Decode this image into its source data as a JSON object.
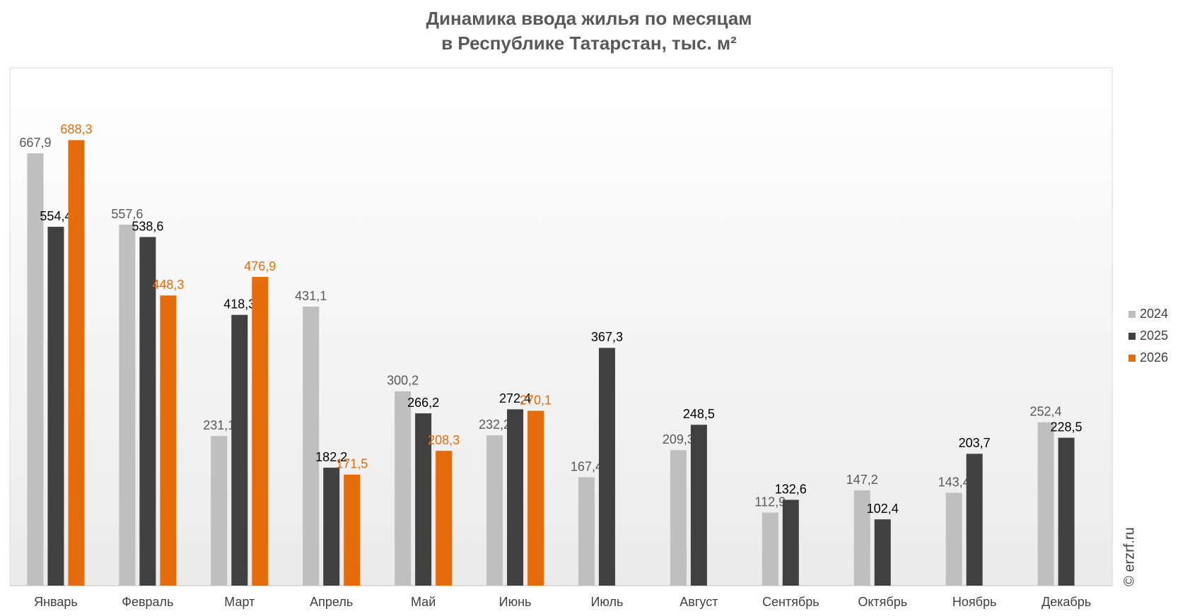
{
  "chart_data": {
    "type": "bar",
    "title": [
      "Динамика ввода жилья по месяцам",
      "в Республике Татарстан, тыс. м²"
    ],
    "categories": [
      "Январь",
      "Февраль",
      "Март",
      "Апрель",
      "Май",
      "Июнь",
      "Июль",
      "Август",
      "Сентябрь",
      "Октябрь",
      "Ноябрь",
      "Декабрь"
    ],
    "series": [
      {
        "name": "2024",
        "color": "#bfbfbf",
        "label_color": "#595959",
        "values": [
          667.9,
          557.6,
          231.1,
          431.1,
          300.2,
          232.2,
          167.4,
          209.3,
          112.9,
          147.2,
          143.4,
          252.4
        ],
        "value_labels": [
          "667,9",
          "557,6",
          "231,1",
          "431,1",
          "300,2",
          "232,2",
          "167,4",
          "209,3",
          "112,9",
          "147,2",
          "143,4",
          "252,4"
        ]
      },
      {
        "name": "2025",
        "color": "#404040",
        "label_color": "#000000",
        "values": [
          554.4,
          538.6,
          418.3,
          182.2,
          266.2,
          272.4,
          367.3,
          248.5,
          132.6,
          102.4,
          203.7,
          228.5
        ],
        "value_labels": [
          "554,4",
          "538,6",
          "418,3",
          "182,2",
          "266,2",
          "272,4",
          "367,3",
          "248,5",
          "132,6",
          "102,4",
          "203,7",
          "228,5"
        ]
      },
      {
        "name": "2026",
        "color": "#e46c0a",
        "label_color": "#e46c0a",
        "values": [
          688.3,
          448.3,
          476.9,
          171.5,
          208.3,
          270.1,
          null,
          null,
          null,
          null,
          null,
          null
        ],
        "value_labels": [
          "688,3",
          "448,3",
          "476,9",
          "171,5",
          "208,3",
          "270,1",
          null,
          null,
          null,
          null,
          null,
          null
        ]
      }
    ],
    "ylim": [
      0,
      800
    ],
    "source": "© erzrf.ru"
  }
}
